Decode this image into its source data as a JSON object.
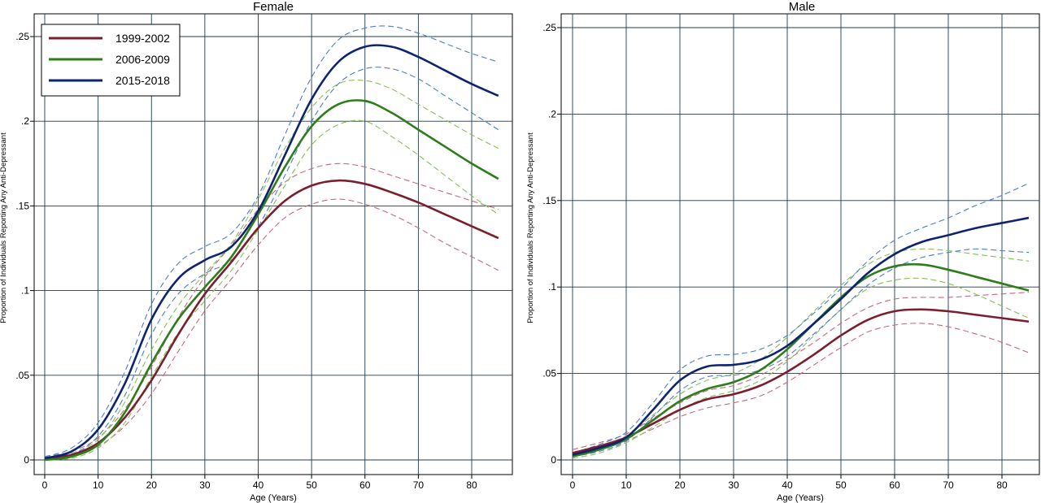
{
  "chart_data": [
    {
      "type": "line",
      "title": "Female",
      "xlabel": "Age (Years)",
      "ylabel": "Proportion of Individuals Reporting Any Anti-Depressant",
      "xlim": [
        0,
        85
      ],
      "ylim": [
        0,
        0.26
      ],
      "xticks": [
        0,
        10,
        20,
        30,
        40,
        50,
        60,
        70,
        80
      ],
      "xtick_labels": [
        "0",
        "10",
        "20",
        "30",
        "40",
        "50",
        "60",
        "70",
        "80"
      ],
      "yticks": [
        0,
        0.05,
        0.1,
        0.15,
        0.2,
        0.25
      ],
      "ytick_labels": [
        "0",
        ".05",
        ".1",
        ".15",
        ".2",
        ".25"
      ],
      "grid": true,
      "legend": {
        "position": "top-left",
        "entries": [
          "1999-2002",
          "2006-2009",
          "2015-2018"
        ]
      },
      "x": [
        0,
        5,
        10,
        15,
        20,
        25,
        30,
        35,
        40,
        45,
        50,
        55,
        60,
        65,
        70,
        75,
        80,
        85
      ],
      "series": [
        {
          "name": "1999-2002",
          "color": "#7b1e2e",
          "values": [
            0.001,
            0.003,
            0.01,
            0.025,
            0.047,
            0.074,
            0.098,
            0.117,
            0.137,
            0.153,
            0.162,
            0.165,
            0.163,
            0.158,
            0.152,
            0.145,
            0.138,
            0.131
          ],
          "lower": [
            0.0,
            0.002,
            0.008,
            0.02,
            0.039,
            0.064,
            0.088,
            0.107,
            0.127,
            0.143,
            0.151,
            0.154,
            0.151,
            0.145,
            0.137,
            0.128,
            0.12,
            0.112
          ],
          "upper": [
            0.002,
            0.005,
            0.013,
            0.03,
            0.055,
            0.084,
            0.108,
            0.127,
            0.148,
            0.164,
            0.172,
            0.175,
            0.173,
            0.168,
            0.163,
            0.158,
            0.153,
            0.148
          ]
        },
        {
          "name": "2006-2009",
          "color": "#2e7d1a",
          "values": [
            0.0,
            0.002,
            0.009,
            0.028,
            0.057,
            0.083,
            0.102,
            0.12,
            0.145,
            0.173,
            0.197,
            0.21,
            0.212,
            0.205,
            0.195,
            0.185,
            0.175,
            0.166
          ],
          "lower": [
            0.0,
            0.001,
            0.007,
            0.022,
            0.049,
            0.075,
            0.094,
            0.112,
            0.136,
            0.162,
            0.186,
            0.198,
            0.2,
            0.191,
            0.18,
            0.168,
            0.156,
            0.145
          ],
          "upper": [
            0.001,
            0.004,
            0.012,
            0.034,
            0.065,
            0.091,
            0.11,
            0.128,
            0.154,
            0.184,
            0.208,
            0.222,
            0.224,
            0.219,
            0.21,
            0.201,
            0.192,
            0.184
          ]
        },
        {
          "name": "2015-2018",
          "color": "#0f2470",
          "values": [
            0.001,
            0.005,
            0.018,
            0.045,
            0.083,
            0.107,
            0.118,
            0.126,
            0.147,
            0.18,
            0.213,
            0.235,
            0.244,
            0.244,
            0.238,
            0.23,
            0.222,
            0.215
          ],
          "lower": [
            0.0,
            0.003,
            0.014,
            0.038,
            0.074,
            0.098,
            0.11,
            0.118,
            0.138,
            0.168,
            0.2,
            0.222,
            0.231,
            0.231,
            0.225,
            0.215,
            0.205,
            0.195
          ],
          "upper": [
            0.002,
            0.007,
            0.022,
            0.052,
            0.092,
            0.116,
            0.126,
            0.134,
            0.156,
            0.192,
            0.226,
            0.248,
            0.255,
            0.256,
            0.252,
            0.246,
            0.24,
            0.235
          ]
        }
      ]
    },
    {
      "type": "line",
      "title": "Male",
      "xlabel": "Age (Years)",
      "ylabel": "Proportion of Individuals Reporting Any Anti-Depressant",
      "xlim": [
        0,
        86
      ],
      "ylim": [
        0,
        0.26
      ],
      "xticks": [
        0,
        10,
        20,
        30,
        40,
        50,
        60,
        70,
        80
      ],
      "xtick_labels": [
        "0",
        "10",
        "20",
        "30",
        "40",
        "50",
        "60",
        "70",
        "80"
      ],
      "yticks": [
        0,
        0.05,
        0.1,
        0.15,
        0.2,
        0.25
      ],
      "ytick_labels": [
        "0",
        ".05",
        ".1",
        ".15",
        ".2",
        ".25"
      ],
      "grid": true,
      "x": [
        0,
        5,
        10,
        15,
        20,
        25,
        30,
        35,
        40,
        45,
        50,
        55,
        60,
        65,
        70,
        75,
        80,
        85
      ],
      "series": [
        {
          "name": "1999-2002",
          "color": "#7b1e2e",
          "values": [
            0.004,
            0.008,
            0.013,
            0.021,
            0.029,
            0.035,
            0.038,
            0.043,
            0.051,
            0.061,
            0.072,
            0.081,
            0.086,
            0.087,
            0.086,
            0.084,
            0.082,
            0.08
          ],
          "lower": [
            0.002,
            0.006,
            0.011,
            0.018,
            0.025,
            0.03,
            0.033,
            0.037,
            0.045,
            0.055,
            0.065,
            0.074,
            0.078,
            0.079,
            0.077,
            0.073,
            0.068,
            0.062
          ],
          "upper": [
            0.006,
            0.01,
            0.015,
            0.024,
            0.033,
            0.04,
            0.043,
            0.049,
            0.058,
            0.068,
            0.079,
            0.088,
            0.093,
            0.094,
            0.094,
            0.095,
            0.096,
            0.097
          ]
        },
        {
          "name": "2006-2009",
          "color": "#2e7d1a",
          "values": [
            0.002,
            0.006,
            0.012,
            0.023,
            0.034,
            0.041,
            0.045,
            0.052,
            0.064,
            0.079,
            0.094,
            0.106,
            0.112,
            0.113,
            0.11,
            0.106,
            0.102,
            0.098
          ],
          "lower": [
            0.001,
            0.004,
            0.01,
            0.019,
            0.029,
            0.036,
            0.04,
            0.046,
            0.057,
            0.072,
            0.087,
            0.099,
            0.104,
            0.105,
            0.102,
            0.096,
            0.089,
            0.082
          ],
          "upper": [
            0.003,
            0.008,
            0.014,
            0.026,
            0.038,
            0.046,
            0.05,
            0.058,
            0.071,
            0.086,
            0.101,
            0.113,
            0.12,
            0.122,
            0.121,
            0.119,
            0.117,
            0.115
          ]
        },
        {
          "name": "2015-2018",
          "color": "#0f2470",
          "values": [
            0.003,
            0.007,
            0.013,
            0.029,
            0.046,
            0.054,
            0.055,
            0.058,
            0.066,
            0.079,
            0.093,
            0.108,
            0.119,
            0.126,
            0.13,
            0.134,
            0.137,
            0.14
          ],
          "lower": [
            0.002,
            0.005,
            0.011,
            0.025,
            0.04,
            0.048,
            0.049,
            0.052,
            0.06,
            0.073,
            0.087,
            0.101,
            0.111,
            0.117,
            0.12,
            0.122,
            0.121,
            0.12
          ],
          "upper": [
            0.004,
            0.009,
            0.016,
            0.033,
            0.052,
            0.06,
            0.061,
            0.064,
            0.072,
            0.085,
            0.099,
            0.115,
            0.127,
            0.134,
            0.14,
            0.147,
            0.153,
            0.16
          ]
        }
      ]
    }
  ]
}
